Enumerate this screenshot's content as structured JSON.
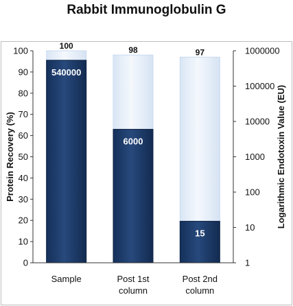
{
  "chart_data": {
    "type": "bar",
    "title": "Rabbit Immunoglobulin G",
    "categories": [
      [
        "Sample"
      ],
      [
        "Post 1st",
        "column"
      ],
      [
        "Post 2nd",
        "column"
      ]
    ],
    "series": [
      {
        "name": "Protein Recovery (%)",
        "axis": "left",
        "values": [
          100,
          98,
          97
        ],
        "labels": [
          "100",
          "98",
          "97"
        ]
      },
      {
        "name": "Logarithmic Endotoxin Value (EU)",
        "axis": "right",
        "values": [
          540000,
          6000,
          15
        ],
        "labels": [
          "540000",
          "6000",
          "15"
        ]
      }
    ],
    "ylabel": "Protein Recovery (%)",
    "ylim": [
      0,
      100
    ],
    "yticks": [
      "0",
      "10",
      "20",
      "30",
      "40",
      "50",
      "60",
      "70",
      "80",
      "90",
      "100"
    ],
    "y2label": "Logarithmic Endotoxin Value (EU)",
    "y2lim": [
      1,
      1000000
    ],
    "y2scale": "log",
    "y2ticks": [
      "1",
      "10",
      "100",
      "1000",
      "10000",
      "100000",
      "1000000"
    ],
    "grid": false,
    "colors": {
      "recovery_fill": "#e6f0fb",
      "recovery_edge": "#c9dbef",
      "endotoxin_fill": "#1d3a66",
      "endotoxin_edge": "#0f2546",
      "axis": "#333333"
    }
  }
}
